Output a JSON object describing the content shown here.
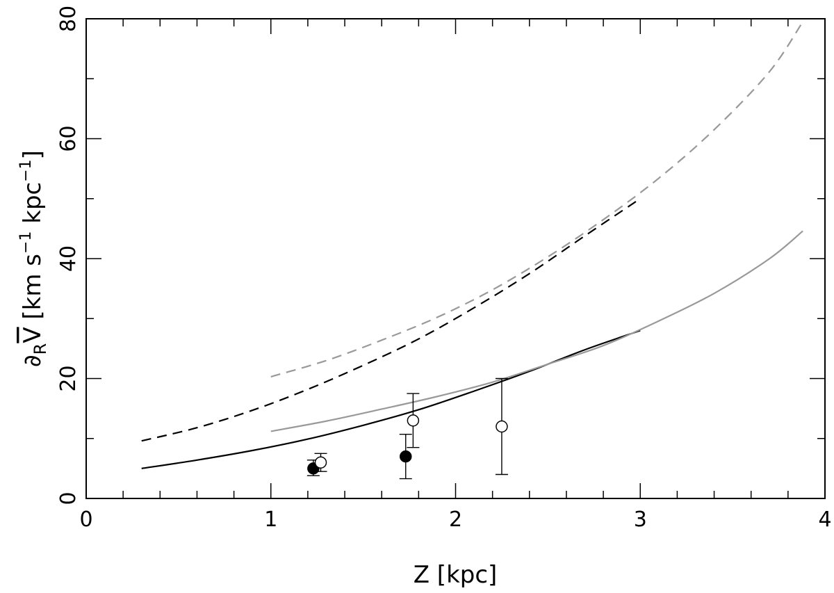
{
  "chart_data": {
    "type": "line",
    "title": "",
    "xlabel": "Z  [kpc]",
    "ylabel_parts": {
      "operator": "∂",
      "operator_subscript": "R",
      "symbol": "V",
      "units_open": " [km s",
      "units_exp1": "−1",
      "units_mid": " kpc",
      "units_exp2": "−1",
      "units_close": "]"
    },
    "xlim": [
      0,
      4
    ],
    "ylim": [
      0,
      80
    ],
    "x_ticks": [
      0,
      1,
      2,
      3,
      4
    ],
    "x_tick_labels": [
      "0",
      "1",
      "2",
      "3",
      "4"
    ],
    "y_ticks": [
      0,
      20,
      40,
      60,
      80
    ],
    "y_tick_labels": [
      "0",
      "20",
      "40",
      "60",
      "80"
    ],
    "x_minor_step": 0.2,
    "y_minor_step": 10,
    "grid": false,
    "series": [
      {
        "style": "solid",
        "color": "#000000",
        "x": [
          0.3,
          0.6,
          0.9,
          1.2,
          1.5,
          1.8,
          2.1,
          2.4,
          2.7,
          3.0
        ],
        "y": [
          5.0,
          6.4,
          8.0,
          9.9,
          12.2,
          14.8,
          17.9,
          21.2,
          24.8,
          28.0
        ]
      },
      {
        "style": "dashed",
        "color": "#000000",
        "x": [
          0.3,
          0.6,
          0.9,
          1.2,
          1.5,
          1.8,
          2.1,
          2.4,
          2.7,
          3.0
        ],
        "y": [
          9.6,
          11.8,
          14.7,
          18.2,
          22.2,
          26.6,
          31.8,
          37.5,
          43.8,
          50.0
        ]
      },
      {
        "style": "solid",
        "color": "#999999",
        "x": [
          1.0,
          1.3,
          1.6,
          1.9,
          2.2,
          2.5,
          2.8,
          3.1,
          3.4,
          3.7,
          3.88
        ],
        "y": [
          11.2,
          12.9,
          14.9,
          17.0,
          19.4,
          22.4,
          25.5,
          29.6,
          34.2,
          40.0,
          44.6
        ]
      },
      {
        "style": "dashed",
        "color": "#999999",
        "x": [
          1.0,
          1.3,
          1.6,
          1.9,
          2.2,
          2.5,
          2.8,
          3.1,
          3.4,
          3.7,
          3.88
        ],
        "y": [
          20.3,
          23.0,
          26.4,
          30.2,
          34.8,
          40.3,
          46.5,
          53.4,
          61.5,
          71.2,
          79.5
        ]
      }
    ],
    "points": [
      {
        "x": 1.23,
        "y": 5.0,
        "err_low": 3.8,
        "err_high": 6.4,
        "marker": "filled"
      },
      {
        "x": 1.27,
        "y": 6.0,
        "err_low": 4.5,
        "err_high": 7.5,
        "marker": "open"
      },
      {
        "x": 1.73,
        "y": 7.0,
        "err_low": 3.3,
        "err_high": 10.7,
        "marker": "filled"
      },
      {
        "x": 1.77,
        "y": 13.0,
        "err_low": 8.5,
        "err_high": 17.5,
        "marker": "open"
      },
      {
        "x": 2.25,
        "y": 12.0,
        "err_low": 4.0,
        "err_high": 20.0,
        "marker": "open"
      }
    ]
  }
}
